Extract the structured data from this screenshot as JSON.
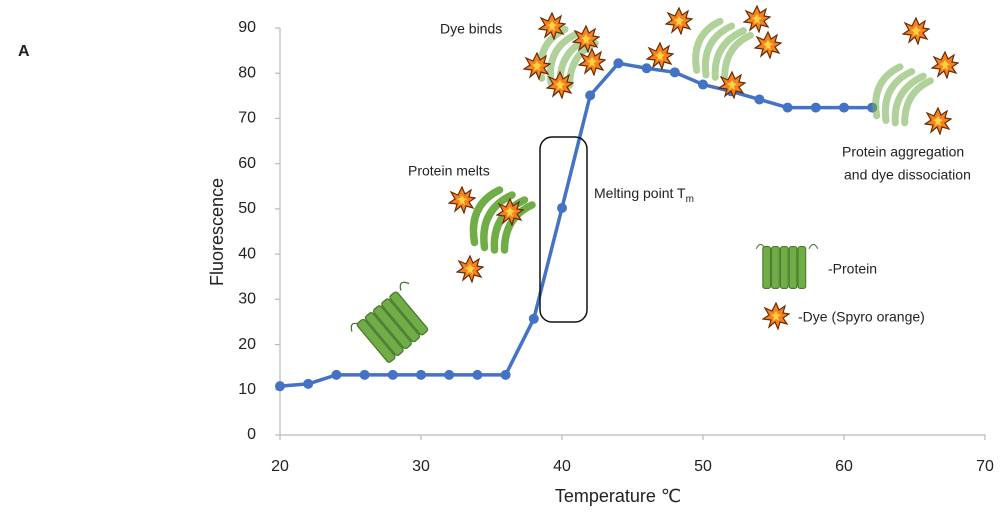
{
  "chart_data": {
    "type": "line",
    "panel_label": "A",
    "x_label": "Temperature ℃",
    "y_label": "Fluorescence",
    "x": [
      20,
      22,
      24,
      26,
      28,
      30,
      32,
      34,
      36,
      38,
      40,
      42,
      44,
      46,
      48,
      50,
      52,
      54,
      56,
      58,
      60,
      62
    ],
    "series": [
      {
        "color": "#4472c4",
        "values": [
          10.8,
          11.3,
          13.3,
          13.3,
          13.3,
          13.3,
          13.3,
          13.3,
          13.3,
          25.7,
          50.2,
          75.1,
          82.2,
          81.1,
          80.2,
          77.5,
          76,
          74.2,
          72.4,
          72.4,
          72.4,
          72.4
        ]
      }
    ],
    "xlim": [
      20,
      70
    ],
    "xticks": [
      20,
      30,
      40,
      50,
      60,
      70
    ],
    "ylim": [
      0,
      90
    ],
    "yticks": [
      0,
      10,
      20,
      30,
      40,
      50,
      60,
      70,
      80,
      90
    ],
    "grid": false,
    "annotations": {
      "dye_binds": "Dye binds",
      "protein_melts": "Protein melts",
      "melting_point": {
        "text": "Melting point T",
        "subscript": "m"
      },
      "aggregation": [
        "Protein aggregation",
        "and dye dissociation"
      ]
    },
    "legend": {
      "protein": "-Protein",
      "dye": "-Dye (Spyro orange)"
    }
  }
}
